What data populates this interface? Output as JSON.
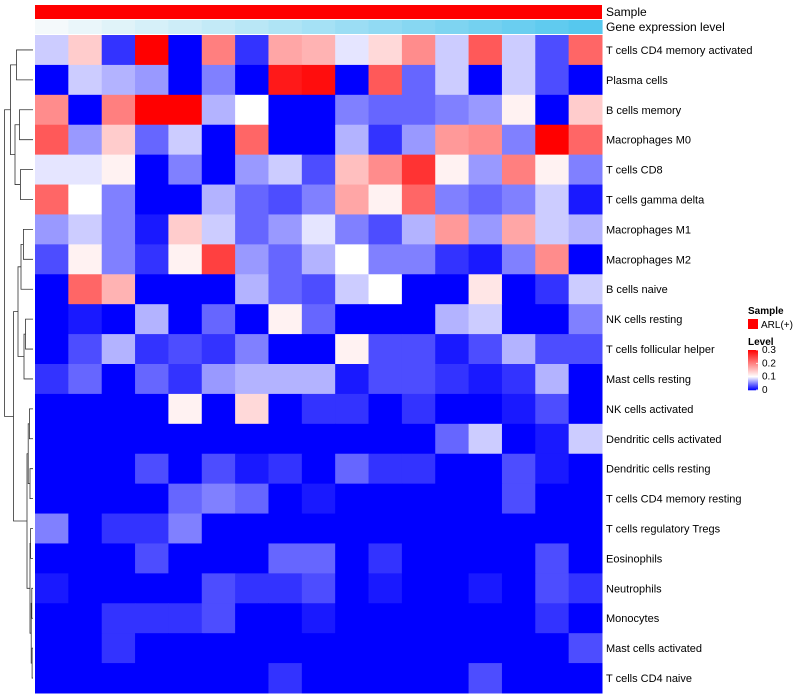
{
  "chart_data": {
    "type": "heatmap",
    "tracks": [
      {
        "label": "Sample",
        "color": "#ff0000"
      },
      {
        "label": "Gene expression level",
        "gradient": [
          "#f4f9fb",
          "#56c8ee"
        ]
      }
    ],
    "rows": [
      "T cells CD4 memory activated",
      "Plasma cells",
      "B cells memory",
      "Macrophages M0",
      "T cells CD8",
      "T cells gamma delta",
      "Macrophages M1",
      "Macrophages M2",
      "B cells naive",
      "NK cells resting",
      "T cells follicular helper",
      "Mast cells resting",
      "NK cells activated",
      "Dendritic cells activated",
      "Dendritic cells resting",
      "T cells CD4 memory resting",
      "T cells regulatory  Tregs",
      "Eosinophils",
      "Neutrophils",
      "Monocytes",
      "Mast cells activated",
      "T cells CD4 naive"
    ],
    "n_columns": 17,
    "values": [
      [
        0.08,
        0.14,
        0.02,
        0.3,
        0.0,
        0.2,
        0.02,
        0.17,
        0.16,
        0.09,
        0.13,
        0.19,
        0.08,
        0.23,
        0.08,
        0.03,
        0.22
      ],
      [
        0.0,
        0.08,
        0.07,
        0.06,
        0.0,
        0.05,
        0.0,
        0.28,
        0.29,
        0.0,
        0.23,
        0.04,
        0.08,
        0.0,
        0.08,
        0.03,
        0.0
      ],
      [
        0.19,
        0.0,
        0.2,
        0.3,
        0.3,
        0.07,
        0.1,
        0.0,
        0.0,
        0.05,
        0.04,
        0.04,
        0.05,
        0.06,
        0.11,
        0.0,
        0.14
      ],
      [
        0.23,
        0.06,
        0.14,
        0.04,
        0.08,
        0.0,
        0.22,
        0.0,
        0.0,
        0.07,
        0.02,
        0.06,
        0.18,
        0.19,
        0.05,
        0.3,
        0.22
      ],
      [
        0.09,
        0.09,
        0.11,
        0.0,
        0.05,
        0.0,
        0.06,
        0.08,
        0.03,
        0.15,
        0.19,
        0.26,
        0.11,
        0.06,
        0.2,
        0.11,
        0.05
      ],
      [
        0.22,
        0.1,
        0.05,
        0.0,
        0.0,
        0.07,
        0.04,
        0.03,
        0.05,
        0.17,
        0.11,
        0.22,
        0.05,
        0.04,
        0.05,
        0.08,
        0.01
      ],
      [
        0.06,
        0.08,
        0.05,
        0.01,
        0.14,
        0.08,
        0.04,
        0.06,
        0.09,
        0.05,
        0.03,
        0.07,
        0.18,
        0.06,
        0.17,
        0.08,
        0.07
      ],
      [
        0.03,
        0.11,
        0.05,
        0.02,
        0.11,
        0.25,
        0.06,
        0.04,
        0.07,
        0.1,
        0.05,
        0.05,
        0.02,
        0.01,
        0.05,
        0.19,
        0.0
      ],
      [
        0.0,
        0.22,
        0.16,
        0.0,
        0.0,
        0.0,
        0.07,
        0.04,
        0.03,
        0.08,
        0.1,
        0.0,
        0.0,
        0.12,
        0.0,
        0.02,
        0.08
      ],
      [
        0.0,
        0.01,
        0.0,
        0.07,
        0.0,
        0.04,
        0.0,
        0.11,
        0.04,
        0.0,
        0.0,
        0.0,
        0.07,
        0.08,
        0.0,
        0.0,
        0.05
      ],
      [
        0.0,
        0.03,
        0.07,
        0.02,
        0.03,
        0.02,
        0.05,
        0.0,
        0.0,
        0.11,
        0.03,
        0.03,
        0.01,
        0.03,
        0.07,
        0.03,
        0.03
      ],
      [
        0.02,
        0.04,
        0.0,
        0.04,
        0.02,
        0.06,
        0.07,
        0.07,
        0.07,
        0.01,
        0.03,
        0.03,
        0.02,
        0.01,
        0.02,
        0.07,
        0.0
      ],
      [
        0.0,
        0.0,
        0.0,
        0.0,
        0.11,
        0.0,
        0.13,
        0.0,
        0.02,
        0.02,
        0.0,
        0.02,
        0.0,
        0.0,
        0.01,
        0.03,
        0.0
      ],
      [
        0.0,
        0.0,
        0.0,
        0.0,
        0.0,
        0.0,
        0.0,
        0.0,
        0.0,
        0.0,
        0.0,
        0.0,
        0.04,
        0.08,
        0.0,
        0.01,
        0.08
      ],
      [
        0.0,
        0.0,
        0.0,
        0.03,
        0.0,
        0.03,
        0.01,
        0.02,
        0.0,
        0.04,
        0.02,
        0.02,
        0.0,
        0.0,
        0.03,
        0.01,
        0.0
      ],
      [
        0.0,
        0.0,
        0.0,
        0.0,
        0.04,
        0.05,
        0.04,
        0.0,
        0.01,
        0.0,
        0.0,
        0.0,
        0.0,
        0.0,
        0.03,
        0.0,
        0.0
      ],
      [
        0.05,
        0.0,
        0.02,
        0.02,
        0.05,
        0.0,
        0.0,
        0.0,
        0.0,
        0.0,
        0.0,
        0.0,
        0.0,
        0.0,
        0.0,
        0.0,
        0.0
      ],
      [
        0.0,
        0.0,
        0.0,
        0.03,
        0.0,
        0.0,
        0.0,
        0.04,
        0.04,
        0.0,
        0.02,
        0.0,
        0.0,
        0.0,
        0.0,
        0.03,
        0.0
      ],
      [
        0.01,
        0.0,
        0.0,
        0.0,
        0.0,
        0.03,
        0.02,
        0.02,
        0.03,
        0.0,
        0.01,
        0.0,
        0.0,
        0.01,
        0.0,
        0.03,
        0.02
      ],
      [
        0.0,
        0.0,
        0.02,
        0.02,
        0.02,
        0.03,
        0.0,
        0.0,
        0.01,
        0.0,
        0.0,
        0.0,
        0.0,
        0.0,
        0.0,
        0.02,
        0.0
      ],
      [
        0.0,
        0.0,
        0.02,
        0.0,
        0.0,
        0.0,
        0.0,
        0.0,
        0.0,
        0.0,
        0.0,
        0.0,
        0.0,
        0.0,
        0.0,
        0.0,
        0.03
      ],
      [
        0.0,
        0.0,
        0.0,
        0.0,
        0.0,
        0.0,
        0.0,
        0.02,
        0.0,
        0.0,
        0.0,
        0.0,
        0.0,
        0.03,
        0.0,
        0.0,
        0.0
      ]
    ],
    "color_scale": {
      "min": 0,
      "mid": 0.1,
      "max": 0.3,
      "colors": [
        "#0000ff",
        "#ffffff",
        "#ff0000"
      ]
    },
    "legend": {
      "position": "right",
      "sample": {
        "title": "Sample",
        "entry": "ARL(+)",
        "color": "#ff0000"
      },
      "level": {
        "title": "Level",
        "ticks": [
          "0.3",
          "0.2",
          "0.1",
          "0"
        ],
        "tick_values": [
          0.3,
          0.2,
          0.1,
          0
        ]
      }
    },
    "dendrogram": {
      "side": "left",
      "type": "row"
    }
  }
}
